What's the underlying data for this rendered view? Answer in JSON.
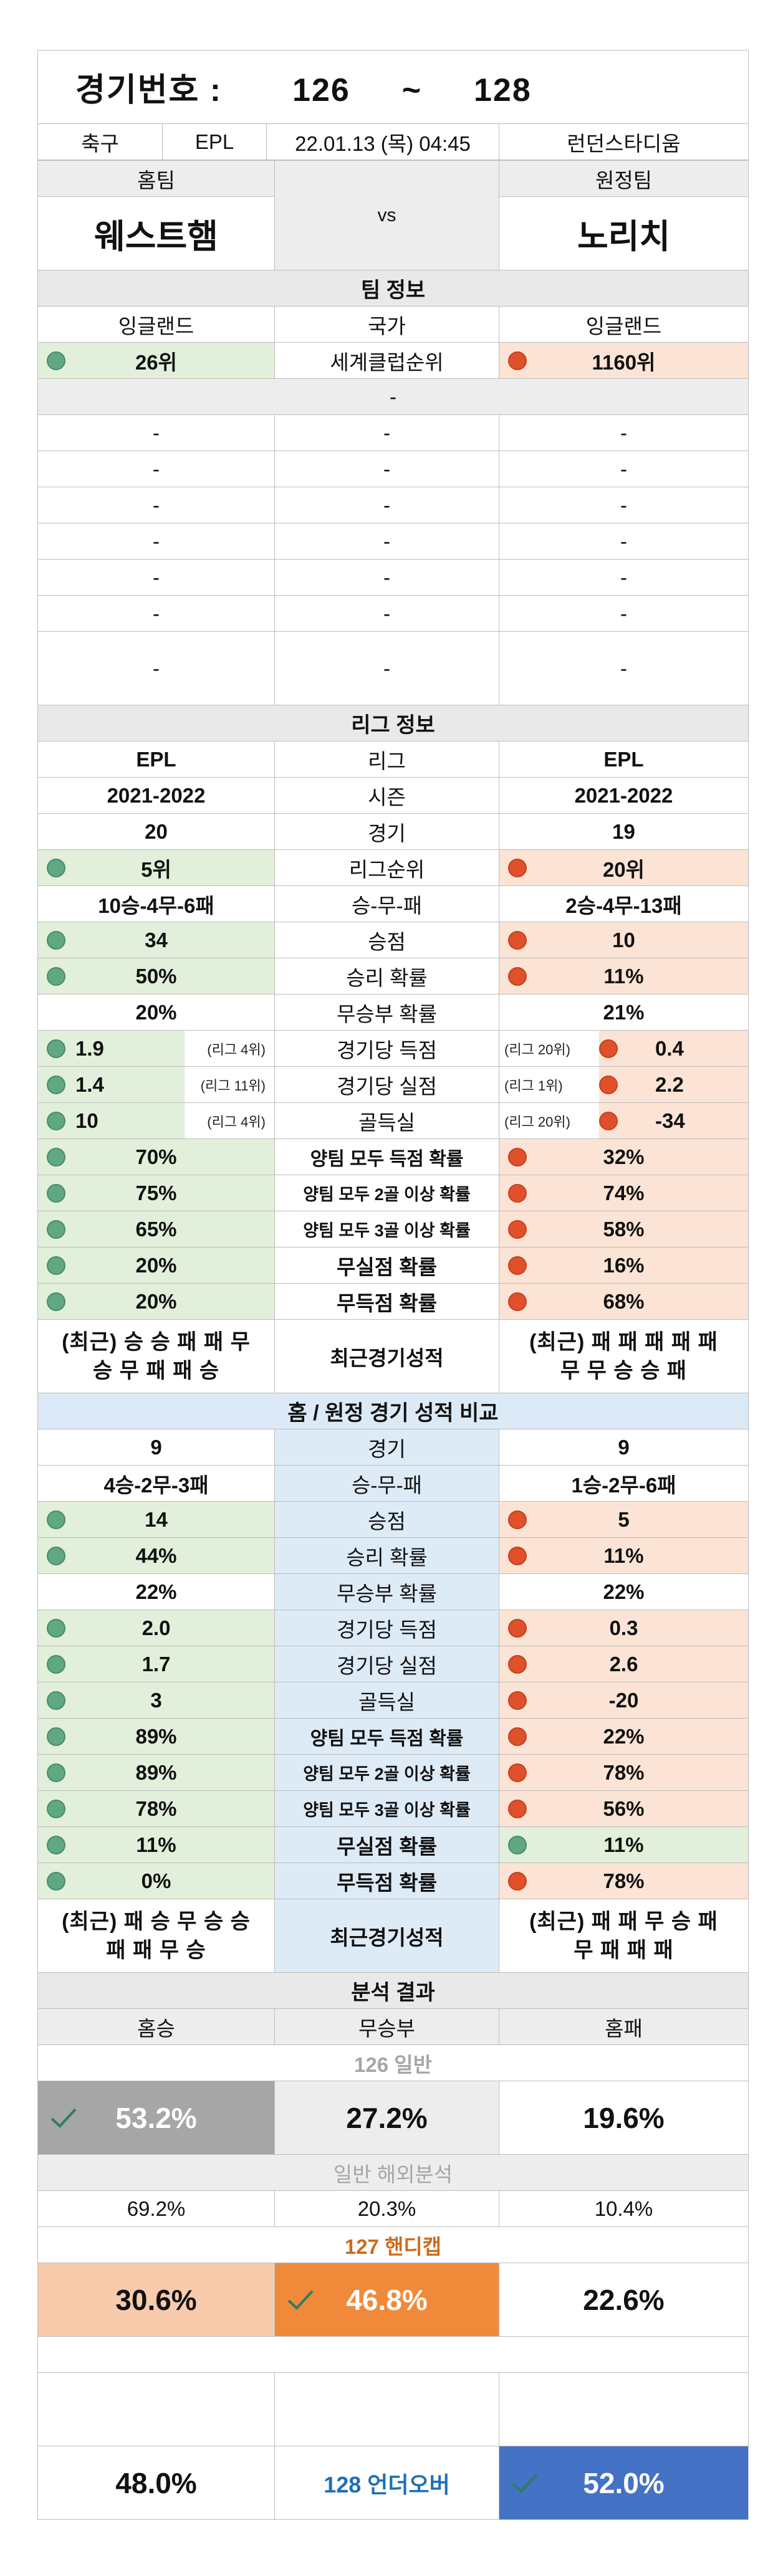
{
  "header": {
    "label": "경기번호 :",
    "from": "126",
    "tilde": "~",
    "to": "128"
  },
  "match": {
    "sport": "축구",
    "league": "EPL",
    "datetime": "22.01.13 (목) 04:45",
    "venue": "런던스타디움"
  },
  "teams": {
    "home_label": "홈팀",
    "away_label": "원정팀",
    "vs": "vs",
    "home": "웨스트햄",
    "away": "노리치"
  },
  "team_info": {
    "title": "팀 정보",
    "country_label": "국가",
    "home_country": "잉글랜드",
    "away_country": "잉글랜드",
    "rank_label": "세계클럽순위",
    "home_rank": "26위",
    "away_rank": "1160위",
    "dash": "-"
  },
  "league_info": {
    "title": "리그 정보",
    "rows": [
      {
        "label": "리그",
        "home": "EPL",
        "away": "EPL"
      },
      {
        "label": "시즌",
        "home": "2021-2022",
        "away": "2021-2022"
      },
      {
        "label": "경기",
        "home": "20",
        "away": "19"
      },
      {
        "label": "리그순위",
        "home": "5위",
        "away": "20위"
      },
      {
        "label": "승-무-패",
        "home": "10승-4무-6패",
        "away": "2승-4무-13패"
      },
      {
        "label": "승점",
        "home": "34",
        "away": "10"
      },
      {
        "label": "승리 확률",
        "home": "50%",
        "away": "11%"
      },
      {
        "label": "무승부 확률",
        "home": "20%",
        "away": "21%"
      },
      {
        "label": "경기당 득점",
        "home": "1.9",
        "home_rank": "(리그 4위)",
        "away": "0.4",
        "away_rank": "(리그 20위)"
      },
      {
        "label": "경기당 실점",
        "home": "1.4",
        "home_rank": "(리그 11위)",
        "away": "2.2",
        "away_rank": "(리그 1위)"
      },
      {
        "label": "골득실",
        "home": "10",
        "home_rank": "(리그 4위)",
        "away": "-34",
        "away_rank": "(리그 20위)"
      },
      {
        "label": "양팀 모두 득점 확률",
        "home": "70%",
        "away": "32%"
      },
      {
        "label": "양팀 모두 2골 이상 확률",
        "home": "75%",
        "away": "74%"
      },
      {
        "label": "양팀 모두 3골 이상 확률",
        "home": "65%",
        "away": "58%"
      },
      {
        "label": "무실점 확률",
        "home": "20%",
        "away": "16%"
      },
      {
        "label": "무득점 확률",
        "home": "20%",
        "away": "68%"
      }
    ],
    "recent_label": "최근경기성적",
    "home_recent_1": "(최근) 승 승 패 패 무",
    "home_recent_2": "승 무 패 패 승",
    "away_recent_1": "(최근) 패 패 패 패 패",
    "away_recent_2": "무 무 승 승 패"
  },
  "ha_compare": {
    "title": "홈 / 원정 경기 성적 비교",
    "rows": [
      {
        "label": "경기",
        "home": "9",
        "away": "9"
      },
      {
        "label": "승-무-패",
        "home": "4승-2무-3패",
        "away": "1승-2무-6패"
      },
      {
        "label": "승점",
        "home": "14",
        "away": "5"
      },
      {
        "label": "승리 확률",
        "home": "44%",
        "away": "11%"
      },
      {
        "label": "무승부 확률",
        "home": "22%",
        "away": "22%"
      },
      {
        "label": "경기당 득점",
        "home": "2.0",
        "away": "0.3"
      },
      {
        "label": "경기당 실점",
        "home": "1.7",
        "away": "2.6"
      },
      {
        "label": "골득실",
        "home": "3",
        "away": "-20"
      },
      {
        "label": "양팀 모두 득점 확률",
        "home": "89%",
        "away": "22%"
      },
      {
        "label": "양팀 모두 2골 이상 확률",
        "home": "89%",
        "away": "78%"
      },
      {
        "label": "양팀 모두 3골 이상 확률",
        "home": "78%",
        "away": "56%"
      },
      {
        "label": "무실점 확률",
        "home": "11%",
        "away": "11%"
      },
      {
        "label": "무득점 확률",
        "home": "0%",
        "away": "78%"
      }
    ],
    "recent_label": "최근경기성적",
    "home_recent_1": "(최근) 패 승 무 승 승",
    "home_recent_2": "패 패 무 승",
    "away_recent_1": "(최근) 패 패 무 승 패",
    "away_recent_2": "무 패 패 패"
  },
  "analysis": {
    "title": "분석 결과",
    "home_win": "홈승",
    "draw": "무승부",
    "home_loss": "홈패",
    "general_label": "126 일반",
    "general": {
      "win": "53.2%",
      "draw": "27.2%",
      "loss": "19.6%"
    },
    "overseas_label": "일반 해외분석",
    "overseas": {
      "win": "69.2%",
      "draw": "20.3%",
      "loss": "10.4%"
    },
    "handicap_label": "127 핸디캡",
    "handicap": {
      "win": "30.6%",
      "draw": "46.8%",
      "loss": "22.6%"
    },
    "uo_label": "128 언더오버",
    "uo": {
      "under": "48.0%",
      "over": "52.0%"
    }
  },
  "colors": {
    "home_bg": "#e2efda",
    "away_bg": "#fbe4d5",
    "home_dot": "#5fa882",
    "away_dot": "#e0502a",
    "gray": "#a6a6a6",
    "orange": "#f08a3a",
    "blue": "#4472c4",
    "compare_bg": "#ddebf7"
  },
  "icons": {
    "win_dot": "green-circle-icon",
    "loss_dot": "red-circle-icon",
    "pick": "checkmark-icon"
  }
}
